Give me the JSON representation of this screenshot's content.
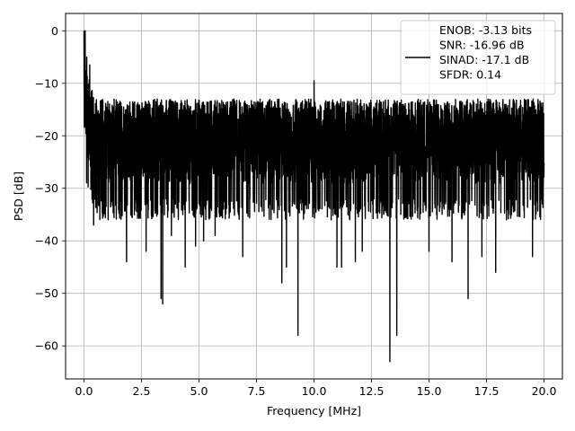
{
  "chart_data": {
    "type": "line",
    "title": "",
    "xlabel": "Frequency [MHz]",
    "ylabel": "PSD [dB]",
    "xlim": [
      -0.8,
      20.8
    ],
    "ylim": [
      -66.3,
      3.3
    ],
    "x_ticks": [
      0.0,
      2.5,
      5.0,
      7.5,
      10.0,
      12.5,
      15.0,
      17.5,
      20.0
    ],
    "x_tick_labels": [
      "0.0",
      "2.5",
      "5.0",
      "7.5",
      "10.0",
      "12.5",
      "15.0",
      "17.5",
      "20.0"
    ],
    "y_ticks": [
      0,
      -10,
      -20,
      -30,
      -40,
      -50,
      -60
    ],
    "y_tick_labels": [
      "0",
      "−10",
      "−20",
      "−30",
      "−40",
      "−50",
      "−60"
    ],
    "grid": true,
    "legend_placement": "top-right",
    "legend_lines": [
      "ENOB: -3.13 bits",
      "SNR: -16.96 dB",
      "SINAD: -17.1 dB",
      "SFDR: 0.14"
    ],
    "series": [
      {
        "color": "#000000",
        "x_range": [
          0,
          20
        ],
        "noise_band": [
          -32,
          -13
        ],
        "start_peak": {
          "x": 0,
          "y": 0
        },
        "notable_peaks": [
          {
            "x": 0.05,
            "y": 0
          },
          {
            "x": 0.12,
            "y": -5
          },
          {
            "x": 0.25,
            "y": -6.5
          },
          {
            "x": 10.0,
            "y": -9.5
          }
        ],
        "notable_dips": [
          {
            "x": 0.42,
            "y": -37
          },
          {
            "x": 1.05,
            "y": -36
          },
          {
            "x": 1.85,
            "y": -44
          },
          {
            "x": 2.7,
            "y": -42
          },
          {
            "x": 3.35,
            "y": -51
          },
          {
            "x": 3.42,
            "y": -52
          },
          {
            "x": 3.8,
            "y": -39
          },
          {
            "x": 4.4,
            "y": -45
          },
          {
            "x": 4.85,
            "y": -41
          },
          {
            "x": 5.2,
            "y": -40
          },
          {
            "x": 5.7,
            "y": -39
          },
          {
            "x": 6.9,
            "y": -43
          },
          {
            "x": 8.6,
            "y": -48
          },
          {
            "x": 8.8,
            "y": -45
          },
          {
            "x": 9.3,
            "y": -58
          },
          {
            "x": 11.0,
            "y": -45
          },
          {
            "x": 11.2,
            "y": -45
          },
          {
            "x": 11.8,
            "y": -44
          },
          {
            "x": 12.1,
            "y": -42
          },
          {
            "x": 13.3,
            "y": -63
          },
          {
            "x": 13.6,
            "y": -58
          },
          {
            "x": 15.0,
            "y": -42
          },
          {
            "x": 16.0,
            "y": -44
          },
          {
            "x": 16.7,
            "y": -51
          },
          {
            "x": 17.3,
            "y": -43
          },
          {
            "x": 17.9,
            "y": -46
          },
          {
            "x": 19.5,
            "y": -43
          }
        ]
      }
    ]
  }
}
